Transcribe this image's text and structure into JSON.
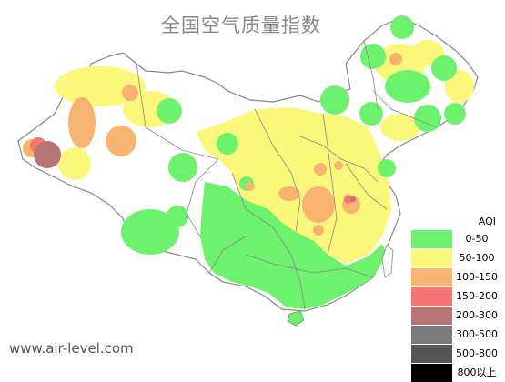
{
  "title": "全国空气质量指数",
  "watermark": "www.air-level.com",
  "legend": {
    "title": "AQI",
    "items": [
      {
        "label": "0-50",
        "color": "#6cf26c"
      },
      {
        "label": "50-100",
        "color": "#fbf77a"
      },
      {
        "label": "100-150",
        "color": "#f9b370"
      },
      {
        "label": "150-200",
        "color": "#f77474"
      },
      {
        "label": "200-300",
        "color": "#b77474"
      },
      {
        "label": "300-500",
        "color": "#7b7b7b"
      },
      {
        "label": "500-800",
        "color": "#555555"
      },
      {
        "label": "800以上",
        "color": "#000000"
      }
    ]
  },
  "map": {
    "background_fill": "#ffffff",
    "border_color": "#888888",
    "colors": {
      "good": "#6cf26c",
      "moderate": "#fbf77a",
      "unhealthy_sensitive": "#f9b370",
      "unhealthy": "#f77474",
      "very_unhealthy": "#b77474"
    }
  }
}
